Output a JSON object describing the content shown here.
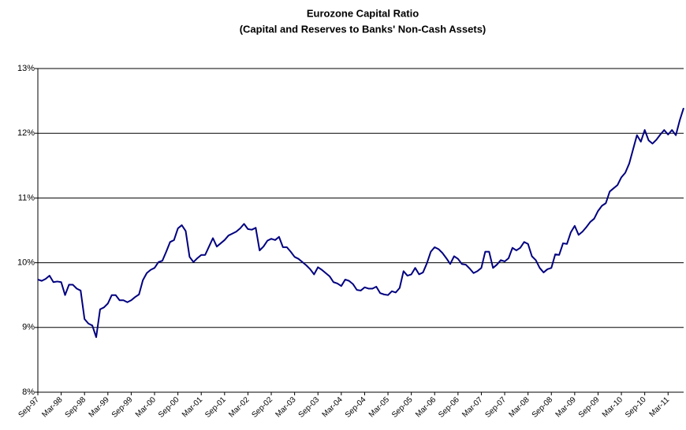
{
  "chart_data": {
    "type": "line",
    "title": "Eurozone Capital Ratio",
    "subtitle": "(Capital and Reserves to Banks' Non-Cash Assets)",
    "categories": [
      "Sep-97",
      null,
      null,
      null,
      null,
      null,
      "Mar-98",
      null,
      null,
      null,
      null,
      null,
      "Sep-98",
      null,
      null,
      null,
      null,
      null,
      "Mar-99",
      null,
      null,
      null,
      null,
      null,
      "Sep-99",
      null,
      null,
      null,
      null,
      null,
      "Mar-00",
      null,
      null,
      null,
      null,
      null,
      "Sep-00",
      null,
      null,
      null,
      null,
      null,
      "Mar-01",
      null,
      null,
      null,
      null,
      null,
      "Sep-01",
      null,
      null,
      null,
      null,
      null,
      "Mar-02",
      null,
      null,
      null,
      null,
      null,
      "Sep-02",
      null,
      null,
      null,
      null,
      null,
      "Mar-03",
      null,
      null,
      null,
      null,
      null,
      "Sep-03",
      null,
      null,
      null,
      null,
      null,
      "Mar-04",
      null,
      null,
      null,
      null,
      null,
      "Sep-04",
      null,
      null,
      null,
      null,
      null,
      "Mar-05",
      null,
      null,
      null,
      null,
      null,
      "Sep-05",
      null,
      null,
      null,
      null,
      null,
      "Mar-06",
      null,
      null,
      null,
      null,
      null,
      "Sep-06",
      null,
      null,
      null,
      null,
      null,
      "Mar-07",
      null,
      null,
      null,
      null,
      null,
      "Sep-07",
      null,
      null,
      null,
      null,
      null,
      "Mar-08",
      null,
      null,
      null,
      null,
      null,
      "Sep-08",
      null,
      null,
      null,
      null,
      null,
      "Mar-09",
      null,
      null,
      null,
      null,
      null,
      "Sep-09",
      null,
      null,
      null,
      null,
      null,
      "Mar-10",
      null,
      null,
      null,
      null,
      null,
      "Sep-10",
      null,
      null,
      null,
      null,
      null,
      "Mar-11",
      null,
      null,
      null,
      null
    ],
    "values": [
      9.74,
      9.72,
      9.75,
      9.8,
      9.7,
      9.71,
      9.7,
      9.5,
      9.66,
      9.66,
      9.6,
      9.57,
      9.13,
      9.06,
      9.03,
      8.85,
      9.28,
      9.31,
      9.37,
      9.5,
      9.5,
      9.42,
      9.42,
      9.39,
      9.42,
      9.47,
      9.51,
      9.73,
      9.84,
      9.89,
      9.92,
      10.01,
      10.03,
      10.17,
      10.32,
      10.35,
      10.53,
      10.58,
      10.49,
      10.09,
      10.01,
      10.07,
      10.12,
      10.12,
      10.25,
      10.38,
      10.25,
      10.3,
      10.35,
      10.42,
      10.45,
      10.48,
      10.53,
      10.6,
      10.52,
      10.51,
      10.54,
      10.19,
      10.25,
      10.34,
      10.37,
      10.35,
      10.4,
      10.24,
      10.24,
      10.17,
      10.09,
      10.06,
      10.01,
      9.96,
      9.9,
      9.82,
      9.93,
      9.89,
      9.84,
      9.79,
      9.7,
      9.68,
      9.64,
      9.74,
      9.72,
      9.67,
      9.58,
      9.57,
      9.62,
      9.6,
      9.6,
      9.63,
      9.53,
      9.51,
      9.5,
      9.56,
      9.54,
      9.61,
      9.87,
      9.8,
      9.82,
      9.92,
      9.82,
      9.85,
      9.99,
      10.17,
      10.24,
      10.21,
      10.15,
      10.07,
      9.98,
      10.1,
      10.06,
      9.98,
      9.97,
      9.91,
      9.84,
      9.87,
      9.92,
      10.17,
      10.17,
      9.92,
      9.97,
      10.04,
      10.02,
      10.07,
      10.23,
      10.19,
      10.23,
      10.32,
      10.29,
      10.1,
      10.04,
      9.92,
      9.85,
      9.9,
      9.92,
      10.13,
      10.12,
      10.3,
      10.29,
      10.47,
      10.57,
      10.43,
      10.48,
      10.55,
      10.63,
      10.68,
      10.8,
      10.88,
      10.92,
      11.1,
      11.15,
      11.2,
      11.32,
      11.39,
      11.53,
      11.75,
      11.97,
      11.87,
      12.05,
      11.89,
      11.84,
      11.9,
      11.98,
      12.05,
      11.98,
      12.05,
      11.97,
      12.2,
      12.39
    ],
    "color": "#000080",
    "ylim": [
      8,
      13
    ],
    "yticks": [
      {
        "value": 8,
        "label": "8%"
      },
      {
        "value": 9,
        "label": "9%"
      },
      {
        "value": 10,
        "label": "10%"
      },
      {
        "value": 11,
        "label": "11%"
      },
      {
        "value": 12,
        "label": "12%"
      },
      {
        "value": 13,
        "label": "13%"
      }
    ],
    "grid": true
  }
}
